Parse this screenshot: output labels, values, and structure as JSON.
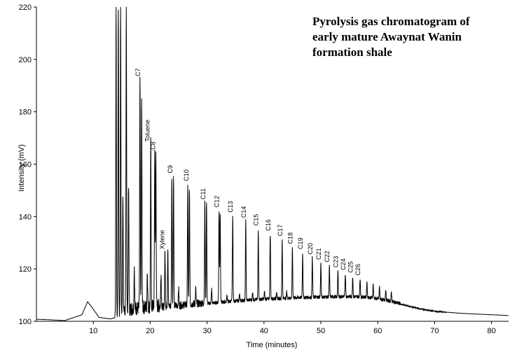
{
  "chart_data": {
    "type": "line",
    "title": [
      "Pyrolysis gas chromatogram of",
      "early mature Awaynat Wanin",
      "formation shale"
    ],
    "xlabel": "Time (minutes)",
    "ylabel": "Intensity (mV)",
    "xlim": [
      0,
      83
    ],
    "ylim": [
      100,
      220
    ],
    "xticks": [
      10,
      20,
      30,
      40,
      50,
      60,
      70,
      80
    ],
    "yticks": [
      100,
      120,
      140,
      160,
      180,
      200,
      220
    ],
    "grid": false,
    "legend": "none",
    "baseline": [
      [
        0,
        100.8
      ],
      [
        5,
        100.3
      ],
      [
        8,
        102.5
      ],
      [
        9,
        107.5
      ],
      [
        9.7,
        105.5
      ],
      [
        11,
        101.5
      ],
      [
        13,
        100.9
      ],
      [
        14,
        101.5
      ],
      [
        16,
        103.5
      ],
      [
        20,
        104.5
      ],
      [
        25,
        105.5
      ],
      [
        30,
        106.5
      ],
      [
        35,
        107.5
      ],
      [
        40,
        108.2
      ],
      [
        45,
        108.7
      ],
      [
        50,
        109.0
      ],
      [
        55,
        109.2
      ],
      [
        58,
        109.0
      ],
      [
        60,
        108.3
      ],
      [
        62,
        107.5
      ],
      [
        65,
        106.0
      ],
      [
        68,
        104.5
      ],
      [
        70,
        103.8
      ],
      [
        75,
        103.0
      ],
      [
        80,
        102.5
      ],
      [
        83,
        102.2
      ]
    ],
    "peaks": [
      {
        "x": 14.0,
        "y": 220
      },
      {
        "x": 14.4,
        "y": 220
      },
      {
        "x": 14.8,
        "y": 220
      },
      {
        "x": 15.2,
        "y": 149
      },
      {
        "x": 15.8,
        "y": 220
      },
      {
        "x": 16.2,
        "y": 150
      },
      {
        "x": 17.2,
        "y": 120
      },
      {
        "x": 18.2,
        "y": 192
      },
      {
        "x": 18.5,
        "y": 184
      },
      {
        "x": 19.5,
        "y": 118
      },
      {
        "x": 20.1,
        "y": 167
      },
      {
        "x": 20.8,
        "y": 164
      },
      {
        "x": 21.0,
        "y": 163
      },
      {
        "x": 21.9,
        "y": 118
      },
      {
        "x": 22.6,
        "y": 126
      },
      {
        "x": 23.1,
        "y": 128
      },
      {
        "x": 23.8,
        "y": 155
      },
      {
        "x": 24.1,
        "y": 155
      },
      {
        "x": 25.0,
        "y": 112
      },
      {
        "x": 26.6,
        "y": 152
      },
      {
        "x": 26.9,
        "y": 151
      },
      {
        "x": 28.0,
        "y": 112
      },
      {
        "x": 29.6,
        "y": 145
      },
      {
        "x": 29.9,
        "y": 145
      },
      {
        "x": 30.8,
        "y": 112
      },
      {
        "x": 32.1,
        "y": 142
      },
      {
        "x": 32.3,
        "y": 141
      },
      {
        "x": 33.5,
        "y": 110
      },
      {
        "x": 34.5,
        "y": 140
      },
      {
        "x": 35.7,
        "y": 110
      },
      {
        "x": 36.8,
        "y": 138
      },
      {
        "x": 38.0,
        "y": 111
      },
      {
        "x": 39.0,
        "y": 135
      },
      {
        "x": 40.1,
        "y": 111
      },
      {
        "x": 41.1,
        "y": 133
      },
      {
        "x": 42.2,
        "y": 111
      },
      {
        "x": 43.2,
        "y": 131
      },
      {
        "x": 44.0,
        "y": 111
      },
      {
        "x": 45.0,
        "y": 128
      },
      {
        "x": 46.8,
        "y": 126
      },
      {
        "x": 48.5,
        "y": 124
      },
      {
        "x": 50.0,
        "y": 122
      },
      {
        "x": 51.5,
        "y": 121
      },
      {
        "x": 53.0,
        "y": 119
      },
      {
        "x": 54.3,
        "y": 118
      },
      {
        "x": 55.6,
        "y": 117
      },
      {
        "x": 56.9,
        "y": 116
      },
      {
        "x": 58.1,
        "y": 115
      },
      {
        "x": 59.2,
        "y": 114
      },
      {
        "x": 60.3,
        "y": 113
      },
      {
        "x": 61.4,
        "y": 112
      },
      {
        "x": 62.4,
        "y": 111
      }
    ],
    "annotations": [
      {
        "label": "C7",
        "x": 18.2,
        "y": 193
      },
      {
        "label": "Toluene",
        "x": 19.9,
        "y": 168
      },
      {
        "label": "C8",
        "x": 20.9,
        "y": 165
      },
      {
        "label": "Xylene",
        "x": 22.5,
        "y": 127
      },
      {
        "label": "C9",
        "x": 23.9,
        "y": 156
      },
      {
        "label": "C10",
        "x": 26.7,
        "y": 153
      },
      {
        "label": "C11",
        "x": 29.7,
        "y": 146
      },
      {
        "label": "C12",
        "x": 32.1,
        "y": 143
      },
      {
        "label": "C13",
        "x": 34.5,
        "y": 141
      },
      {
        "label": "C14",
        "x": 36.8,
        "y": 139
      },
      {
        "label": "C15",
        "x": 39.0,
        "y": 136
      },
      {
        "label": "C16",
        "x": 41.1,
        "y": 134
      },
      {
        "label": "C17",
        "x": 43.2,
        "y": 132
      },
      {
        "label": "C18",
        "x": 45.0,
        "y": 129
      },
      {
        "label": "C19",
        "x": 46.8,
        "y": 127
      },
      {
        "label": "C20",
        "x": 48.5,
        "y": 125
      },
      {
        "label": "C21",
        "x": 50.0,
        "y": 123
      },
      {
        "label": "C22",
        "x": 51.5,
        "y": 122
      },
      {
        "label": "C23",
        "x": 53.0,
        "y": 120
      },
      {
        "label": "C24",
        "x": 54.3,
        "y": 119
      },
      {
        "label": "C25",
        "x": 55.6,
        "y": 118
      },
      {
        "label": "C26",
        "x": 56.9,
        "y": 117
      }
    ]
  }
}
